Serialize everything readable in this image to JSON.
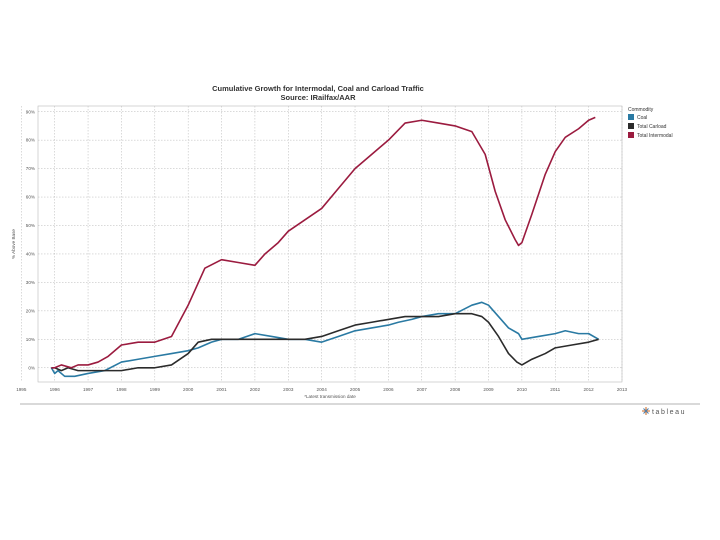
{
  "chart_data": {
    "type": "line",
    "title": "Cumulative Growth for Intermodal, Coal and Carload Traffic",
    "subtitle": "Source: IRailfax/AAR",
    "xlabel": "*Latest transmission date",
    "ylabel": "% Above Base",
    "xlim": [
      1995.5,
      2013.0
    ],
    "ylim": [
      -5,
      92
    ],
    "x_ticks": [
      "1995",
      "1996",
      "1997",
      "1998",
      "1999",
      "2000",
      "2001",
      "2002",
      "2003",
      "2004",
      "2005",
      "2006",
      "2007",
      "2008",
      "2009",
      "2010",
      "2011",
      "2012",
      "2013"
    ],
    "y_ticks": [
      "0%",
      "10%",
      "20%",
      "30%",
      "40%",
      "50%",
      "60%",
      "70%",
      "80%",
      "90%"
    ],
    "grid": true,
    "legend": {
      "title": "Commodity",
      "position": "right"
    },
    "series": [
      {
        "name": "Coal",
        "color": "#2a7aa3",
        "points": [
          [
            1995.9,
            0
          ],
          [
            1996.0,
            -2
          ],
          [
            1996.1,
            -1
          ],
          [
            1996.3,
            -3
          ],
          [
            1996.6,
            -3
          ],
          [
            1997.0,
            -2
          ],
          [
            1997.5,
            -1
          ],
          [
            1998.0,
            2
          ],
          [
            1998.5,
            3
          ],
          [
            1999.0,
            4
          ],
          [
            1999.5,
            5
          ],
          [
            2000.0,
            6
          ],
          [
            2000.3,
            7
          ],
          [
            2000.7,
            9
          ],
          [
            2001.0,
            10
          ],
          [
            2001.5,
            10
          ],
          [
            2002.0,
            12
          ],
          [
            2002.5,
            11
          ],
          [
            2003.0,
            10
          ],
          [
            2003.5,
            10
          ],
          [
            2004.0,
            9
          ],
          [
            2004.5,
            11
          ],
          [
            2005.0,
            13
          ],
          [
            2005.5,
            14
          ],
          [
            2006.0,
            15
          ],
          [
            2006.3,
            16
          ],
          [
            2006.7,
            17
          ],
          [
            2007.0,
            18
          ],
          [
            2007.5,
            19
          ],
          [
            2008.0,
            19
          ],
          [
            2008.5,
            22
          ],
          [
            2008.8,
            23
          ],
          [
            2009.0,
            22
          ],
          [
            2009.3,
            18
          ],
          [
            2009.6,
            14
          ],
          [
            2009.9,
            12
          ],
          [
            2010.0,
            10
          ],
          [
            2010.5,
            11
          ],
          [
            2011.0,
            12
          ],
          [
            2011.3,
            13
          ],
          [
            2011.7,
            12
          ],
          [
            2012.0,
            12
          ],
          [
            2012.3,
            10
          ]
        ]
      },
      {
        "name": "Total Carload",
        "color": "#2b2b2b",
        "points": [
          [
            1995.9,
            0
          ],
          [
            1996.0,
            0
          ],
          [
            1996.2,
            -1
          ],
          [
            1996.4,
            0
          ],
          [
            1996.7,
            -1
          ],
          [
            1997.0,
            -1
          ],
          [
            1997.5,
            -1
          ],
          [
            1998.0,
            -1
          ],
          [
            1998.5,
            0
          ],
          [
            1999.0,
            0
          ],
          [
            1999.5,
            1
          ],
          [
            2000.0,
            5
          ],
          [
            2000.3,
            9
          ],
          [
            2000.7,
            10
          ],
          [
            2001.0,
            10
          ],
          [
            2001.5,
            10
          ],
          [
            2002.0,
            10
          ],
          [
            2002.5,
            10
          ],
          [
            2003.0,
            10
          ],
          [
            2003.5,
            10
          ],
          [
            2004.0,
            11
          ],
          [
            2004.5,
            13
          ],
          [
            2005.0,
            15
          ],
          [
            2005.5,
            16
          ],
          [
            2006.0,
            17
          ],
          [
            2006.5,
            18
          ],
          [
            2007.0,
            18
          ],
          [
            2007.5,
            18
          ],
          [
            2008.0,
            19
          ],
          [
            2008.5,
            19
          ],
          [
            2008.8,
            18
          ],
          [
            2009.0,
            16
          ],
          [
            2009.3,
            11
          ],
          [
            2009.6,
            5
          ],
          [
            2009.85,
            2
          ],
          [
            2010.0,
            1
          ],
          [
            2010.3,
            3
          ],
          [
            2010.7,
            5
          ],
          [
            2011.0,
            7
          ],
          [
            2011.5,
            8
          ],
          [
            2012.0,
            9
          ],
          [
            2012.3,
            10
          ]
        ]
      },
      {
        "name": "Total Intermodal",
        "color": "#9b1b3f",
        "points": [
          [
            1995.9,
            0
          ],
          [
            1996.0,
            0
          ],
          [
            1996.2,
            1
          ],
          [
            1996.5,
            0
          ],
          [
            1996.7,
            1
          ],
          [
            1997.0,
            1
          ],
          [
            1997.3,
            2
          ],
          [
            1997.6,
            4
          ],
          [
            1998.0,
            8
          ],
          [
            1998.5,
            9
          ],
          [
            1999.0,
            9
          ],
          [
            1999.5,
            11
          ],
          [
            2000.0,
            22
          ],
          [
            2000.5,
            35
          ],
          [
            2001.0,
            38
          ],
          [
            2001.5,
            37
          ],
          [
            2002.0,
            36
          ],
          [
            2002.3,
            40
          ],
          [
            2002.7,
            44
          ],
          [
            2003.0,
            48
          ],
          [
            2003.5,
            52
          ],
          [
            2004.0,
            56
          ],
          [
            2004.5,
            63
          ],
          [
            2005.0,
            70
          ],
          [
            2005.5,
            75
          ],
          [
            2006.0,
            80
          ],
          [
            2006.5,
            86
          ],
          [
            2007.0,
            87
          ],
          [
            2007.5,
            86
          ],
          [
            2008.0,
            85
          ],
          [
            2008.5,
            83
          ],
          [
            2008.9,
            75
          ],
          [
            2009.2,
            62
          ],
          [
            2009.5,
            52
          ],
          [
            2009.8,
            45
          ],
          [
            2009.9,
            43
          ],
          [
            2010.0,
            44
          ],
          [
            2010.3,
            54
          ],
          [
            2010.7,
            68
          ],
          [
            2011.0,
            76
          ],
          [
            2011.3,
            81
          ],
          [
            2011.7,
            84
          ],
          [
            2012.0,
            87
          ],
          [
            2012.2,
            88
          ]
        ]
      }
    ]
  },
  "branding": {
    "name": "tableau"
  }
}
